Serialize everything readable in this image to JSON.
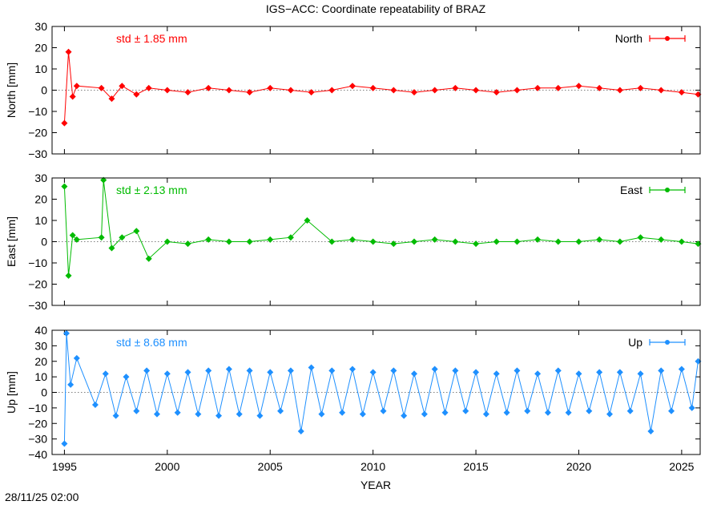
{
  "chart_data": {
    "type": "scatter",
    "title": "IGS−ACC: Coordinate repeatability of BRAZ",
    "xlabel": "YEAR",
    "xlim": [
      1994.4,
      2025.9
    ],
    "xticks": [
      1995,
      2000,
      2005,
      2010,
      2015,
      2020,
      2025
    ],
    "panels": [
      {
        "name": "North",
        "ylabel": "North [mm]",
        "ylim": [
          -30,
          30
        ],
        "yticks": [
          -30,
          -20,
          -10,
          0,
          10,
          20,
          30
        ],
        "std_label": "std ± 1.85 mm",
        "color": "#ff0000",
        "x": [
          1995.0,
          1995.2,
          1995.4,
          1995.6,
          1996.8,
          1997.3,
          1997.8,
          1998.5,
          1999.1,
          2000.0,
          2001.0,
          2002.0,
          2003.0,
          2004.0,
          2005.0,
          2006.0,
          2007.0,
          2008.0,
          2009.0,
          2010.0,
          2011.0,
          2012.0,
          2013.0,
          2014.0,
          2015.0,
          2016.0,
          2017.0,
          2018.0,
          2019.0,
          2020.0,
          2021.0,
          2022.0,
          2023.0,
          2024.0,
          2025.0,
          2025.8
        ],
        "y": [
          -15.5,
          18,
          -3,
          2,
          1,
          -4,
          2,
          -2,
          1,
          0,
          -1,
          1,
          0,
          -1,
          1,
          0,
          -1,
          0,
          2,
          1,
          0,
          -1,
          0,
          1,
          0,
          -1,
          0,
          1,
          1,
          2,
          1,
          0,
          1,
          0,
          -1,
          -2
        ]
      },
      {
        "name": "East",
        "ylabel": "East [mm]",
        "ylim": [
          -30,
          30
        ],
        "yticks": [
          -30,
          -20,
          -10,
          0,
          10,
          20,
          30
        ],
        "std_label": "std ± 2.13 mm",
        "color": "#00bb00",
        "x": [
          1995.0,
          1995.2,
          1995.4,
          1995.6,
          1996.8,
          1996.9,
          1997.3,
          1997.8,
          1998.5,
          1999.1,
          2000.0,
          2001.0,
          2002.0,
          2003.0,
          2004.0,
          2005.0,
          2006.0,
          2006.8,
          2008.0,
          2009.0,
          2010.0,
          2011.0,
          2012.0,
          2013.0,
          2014.0,
          2015.0,
          2016.0,
          2017.0,
          2018.0,
          2019.0,
          2020.0,
          2021.0,
          2022.0,
          2023.0,
          2024.0,
          2025.0,
          2025.8
        ],
        "y": [
          26,
          -16,
          3,
          1,
          2,
          29,
          -3,
          2,
          5,
          -8,
          0,
          -1,
          1,
          0,
          0,
          1,
          2,
          10,
          0,
          1,
          0,
          -1,
          0,
          1,
          0,
          -1,
          0,
          0,
          1,
          0,
          0,
          1,
          0,
          2,
          1,
          0,
          -1
        ]
      },
      {
        "name": "Up",
        "ylabel": "Up [mm]",
        "ylim": [
          -40,
          40
        ],
        "yticks": [
          -40,
          -30,
          -20,
          -10,
          0,
          10,
          20,
          30,
          40
        ],
        "std_label": "std ± 8.68 mm",
        "color": "#1e90ff",
        "x": [
          1995.0,
          1995.1,
          1995.3,
          1995.6,
          1996.5,
          1997.0,
          1997.5,
          1998.0,
          1998.5,
          1999.0,
          1999.5,
          2000.0,
          2000.5,
          2001.0,
          2001.5,
          2002.0,
          2002.5,
          2003.0,
          2003.5,
          2004.0,
          2004.5,
          2005.0,
          2005.5,
          2006.0,
          2006.5,
          2007.0,
          2007.5,
          2008.0,
          2008.5,
          2009.0,
          2009.5,
          2010.0,
          2010.5,
          2011.0,
          2011.5,
          2012.0,
          2012.5,
          2013.0,
          2013.5,
          2014.0,
          2014.5,
          2015.0,
          2015.5,
          2016.0,
          2016.5,
          2017.0,
          2017.5,
          2018.0,
          2018.5,
          2019.0,
          2019.5,
          2020.0,
          2020.5,
          2021.0,
          2021.5,
          2022.0,
          2022.5,
          2023.0,
          2023.5,
          2024.0,
          2024.5,
          2025.0,
          2025.5,
          2025.8
        ],
        "y": [
          -33,
          38,
          5,
          22,
          -8,
          12,
          -15,
          10,
          -12,
          14,
          -14,
          12,
          -13,
          13,
          -14,
          14,
          -15,
          15,
          -14,
          14,
          -15,
          13,
          -12,
          14,
          -25,
          16,
          -14,
          14,
          -13,
          15,
          -14,
          13,
          -12,
          14,
          -15,
          12,
          -14,
          15,
          -13,
          14,
          -12,
          13,
          -14,
          12,
          -13,
          14,
          -12,
          12,
          -13,
          14,
          -13,
          12,
          -12,
          13,
          -14,
          13,
          -12,
          12,
          -25,
          14,
          -12,
          15,
          -10,
          20
        ]
      }
    ]
  },
  "footer": {
    "timestamp": "28/11/25 02:00"
  }
}
